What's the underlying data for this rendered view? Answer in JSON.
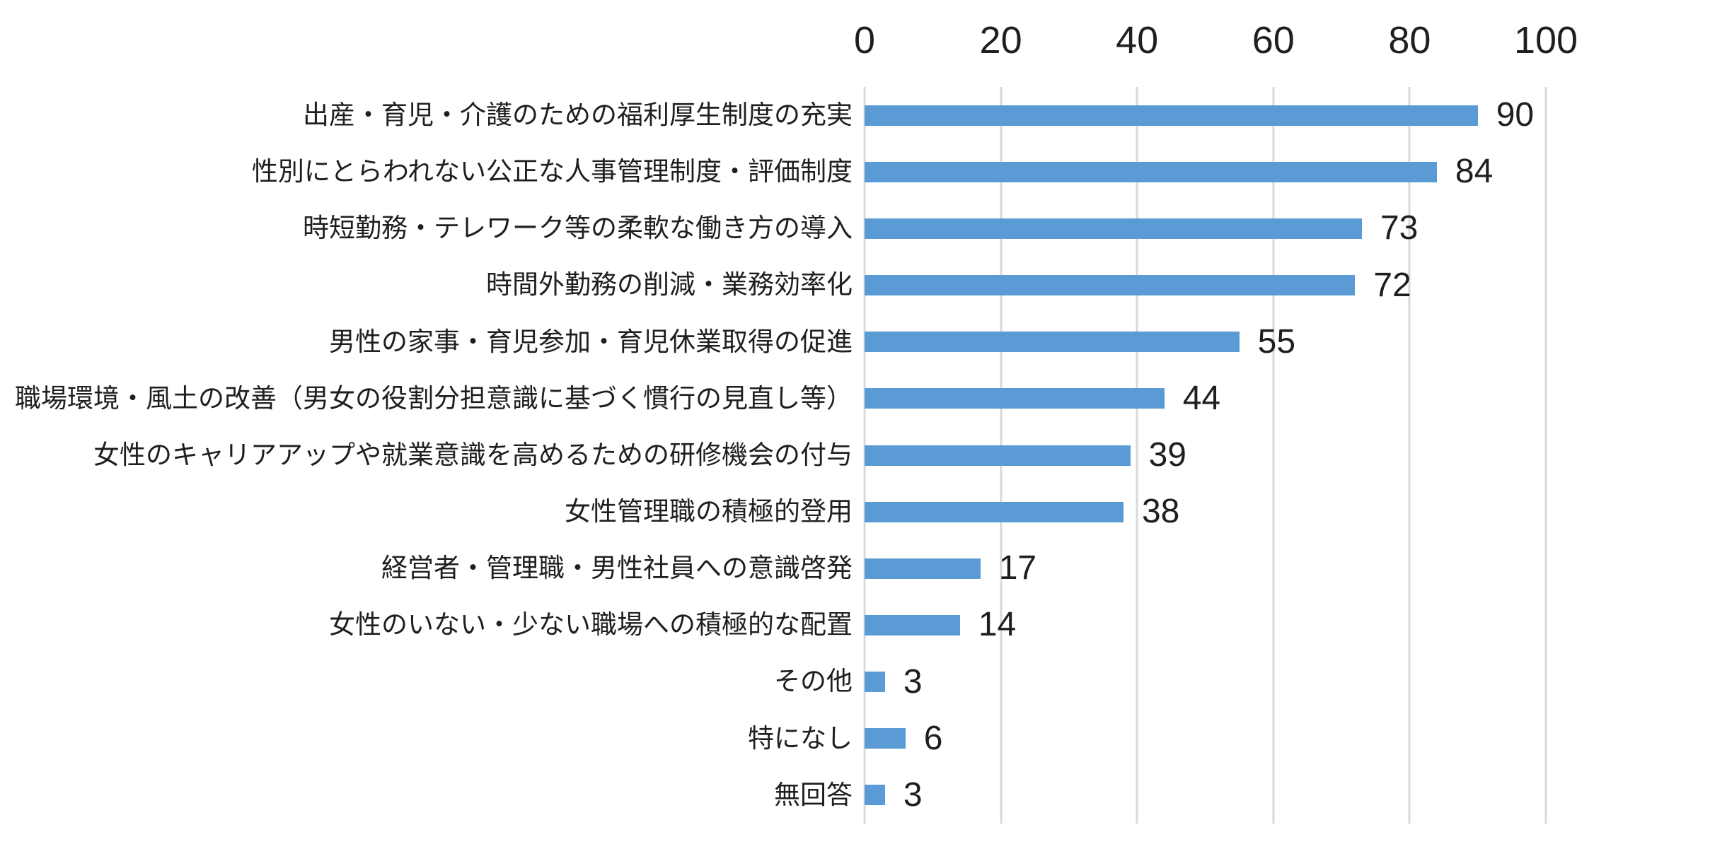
{
  "chart_data": {
    "type": "bar",
    "orientation": "horizontal",
    "title": "",
    "xlabel": "",
    "ylabel": "",
    "xlim": [
      0,
      100
    ],
    "x_ticks": [
      0,
      20,
      40,
      60,
      80,
      100
    ],
    "grid": true,
    "value_labels": true,
    "legend": false,
    "bar_color": "#5B9BD5",
    "gridline_color": "#D9D9D9",
    "text_color": "#1F1F1F",
    "categories": [
      "出産・育児・介護のための福利厚生制度の充実",
      "性別にとらわれない公正な人事管理制度・評価制度",
      "時短勤務・テレワーク等の柔軟な働き方の導入",
      "時間外勤務の削減・業務効率化",
      "男性の家事・育児参加・育児休業取得の促進",
      "職場環境・風土の改善（男女の役割分担意識に基づく慣行の見直し等）",
      "女性のキャリアアップや就業意識を高めるための研修機会の付与",
      "女性管理職の積極的登用",
      "経営者・管理職・男性社員への意識啓発",
      "女性のいない・少ない職場への積極的な配置",
      "その他",
      "特になし",
      "無回答"
    ],
    "values": [
      90,
      84,
      73,
      72,
      55,
      44,
      39,
      38,
      17,
      14,
      3,
      6,
      3
    ]
  }
}
